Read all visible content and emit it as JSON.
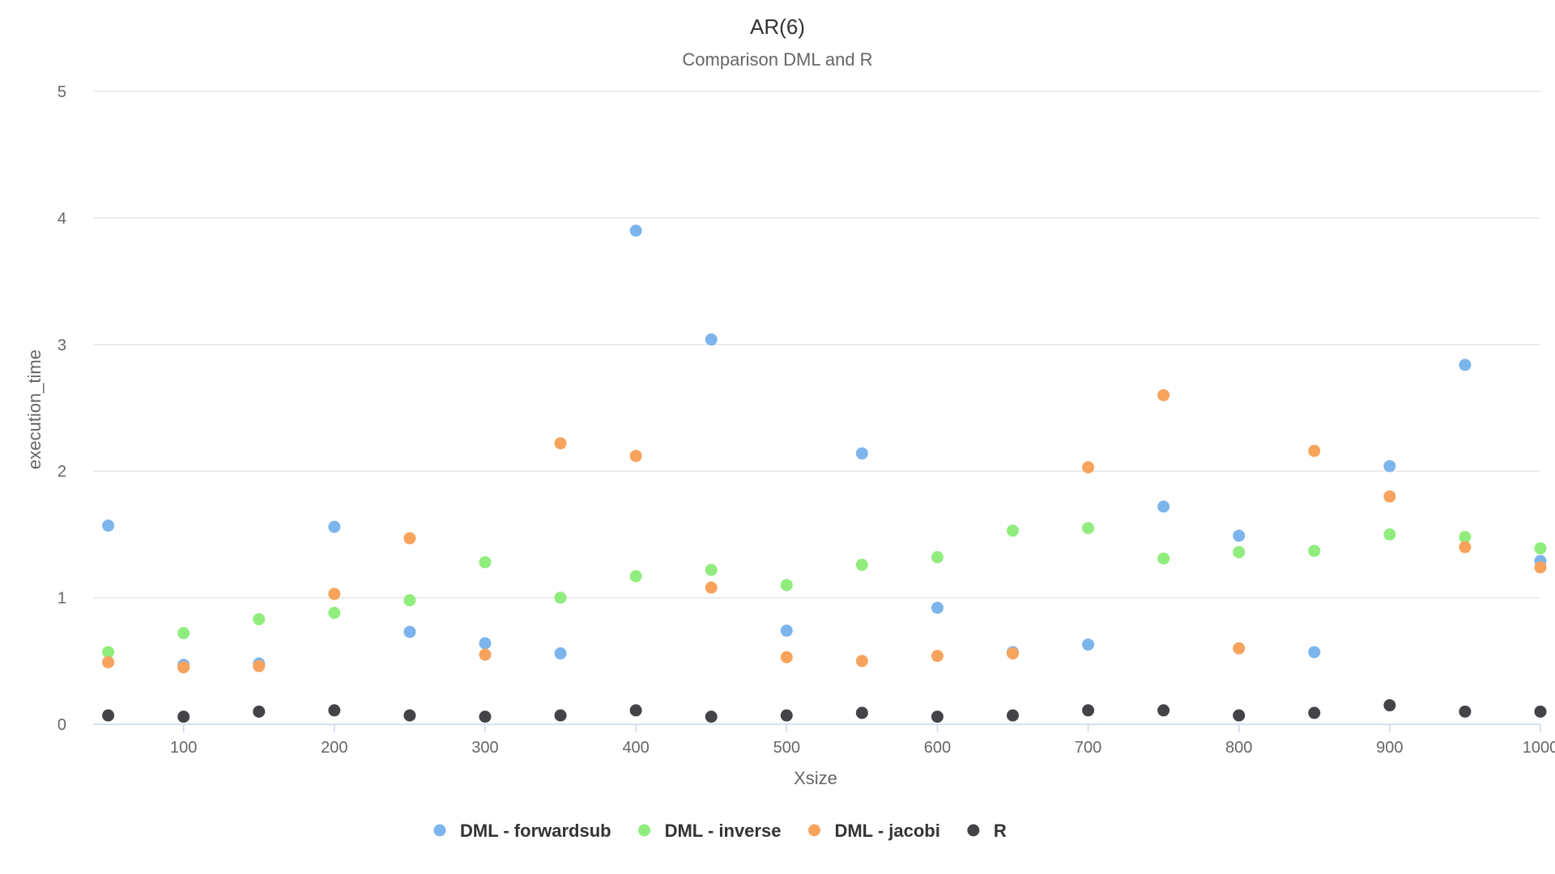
{
  "chart_data": {
    "type": "scatter",
    "title": "AR(6)",
    "subtitle": "Comparison DML and R",
    "xlabel": "Xsize",
    "ylabel": "execution_time",
    "xlim": [
      40,
      1000
    ],
    "ylim": [
      0,
      5
    ],
    "x_ticks": [
      "100",
      "200",
      "300",
      "400",
      "500",
      "600",
      "700",
      "800",
      "900",
      "1000"
    ],
    "y_ticks": [
      "0",
      "1",
      "2",
      "3",
      "4",
      "5"
    ],
    "grid": true,
    "legend_position": "bottom",
    "series": [
      {
        "name": "DML - forwardsub",
        "color": "#7cb5ec",
        "points": [
          [
            50,
            1.57
          ],
          [
            100,
            0.47
          ],
          [
            150,
            0.48
          ],
          [
            200,
            1.56
          ],
          [
            250,
            0.73
          ],
          [
            300,
            0.64
          ],
          [
            350,
            0.56
          ],
          [
            400,
            3.9
          ],
          [
            450,
            3.04
          ],
          [
            500,
            0.74
          ],
          [
            550,
            2.14
          ],
          [
            600,
            0.92
          ],
          [
            650,
            0.57
          ],
          [
            700,
            0.63
          ],
          [
            750,
            1.72
          ],
          [
            800,
            1.49
          ],
          [
            850,
            0.57
          ],
          [
            900,
            2.04
          ],
          [
            950,
            2.84
          ],
          [
            1000,
            1.29
          ]
        ]
      },
      {
        "name": "DML - inverse",
        "color": "#90ed7d",
        "points": [
          [
            50,
            0.57
          ],
          [
            100,
            0.72
          ],
          [
            150,
            0.83
          ],
          [
            200,
            0.88
          ],
          [
            250,
            0.98
          ],
          [
            300,
            1.28
          ],
          [
            350,
            1.0
          ],
          [
            400,
            1.17
          ],
          [
            450,
            1.22
          ],
          [
            500,
            1.1
          ],
          [
            550,
            1.26
          ],
          [
            600,
            1.32
          ],
          [
            650,
            1.53
          ],
          [
            700,
            1.55
          ],
          [
            750,
            1.31
          ],
          [
            800,
            1.36
          ],
          [
            850,
            1.37
          ],
          [
            900,
            1.5
          ],
          [
            950,
            1.48
          ],
          [
            1000,
            1.39
          ]
        ]
      },
      {
        "name": "DML - jacobi",
        "color": "#f7a35c",
        "points": [
          [
            50,
            0.49
          ],
          [
            100,
            0.45
          ],
          [
            150,
            0.46
          ],
          [
            200,
            1.03
          ],
          [
            250,
            1.47
          ],
          [
            300,
            0.55
          ],
          [
            350,
            2.22
          ],
          [
            400,
            2.12
          ],
          [
            450,
            1.08
          ],
          [
            500,
            0.53
          ],
          [
            550,
            0.5
          ],
          [
            600,
            0.54
          ],
          [
            650,
            0.56
          ],
          [
            700,
            2.03
          ],
          [
            750,
            2.6
          ],
          [
            800,
            0.6
          ],
          [
            850,
            2.16
          ],
          [
            900,
            1.8
          ],
          [
            950,
            1.4
          ],
          [
            1000,
            1.24
          ]
        ]
      },
      {
        "name": "R",
        "color": "#434348",
        "points": [
          [
            50,
            0.07
          ],
          [
            100,
            0.06
          ],
          [
            150,
            0.1
          ],
          [
            200,
            0.11
          ],
          [
            250,
            0.07
          ],
          [
            300,
            0.06
          ],
          [
            350,
            0.07
          ],
          [
            400,
            0.11
          ],
          [
            450,
            0.06
          ],
          [
            500,
            0.07
          ],
          [
            550,
            0.09
          ],
          [
            600,
            0.06
          ],
          [
            650,
            0.07
          ],
          [
            700,
            0.11
          ],
          [
            750,
            0.11
          ],
          [
            800,
            0.07
          ],
          [
            850,
            0.09
          ],
          [
            900,
            0.15
          ],
          [
            950,
            0.1
          ],
          [
            1000,
            0.1
          ]
        ]
      }
    ]
  }
}
